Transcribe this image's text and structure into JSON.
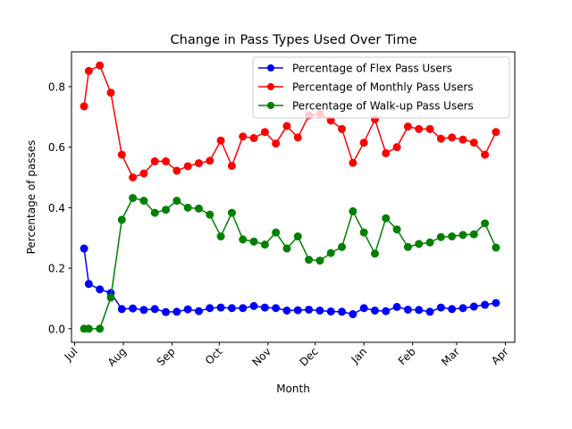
{
  "chart_data": {
    "type": "line",
    "title": "Change in Pass Types Used Over Time",
    "xlabel": "Month",
    "ylabel": "Percentage of passes",
    "ylim": [
      -0.045,
      0.915
    ],
    "yticks": [
      0.0,
      0.2,
      0.4,
      0.6,
      0.8
    ],
    "xlim": [
      "2016-06-29",
      "2017-04-07"
    ],
    "xticks": [
      {
        "label": "Jul",
        "date": "2016-07-01"
      },
      {
        "label": "Aug",
        "date": "2016-08-01"
      },
      {
        "label": "Sep",
        "date": "2016-09-01"
      },
      {
        "label": "Oct",
        "date": "2016-10-01"
      },
      {
        "label": "Nov",
        "date": "2016-11-01"
      },
      {
        "label": "Dec",
        "date": "2016-12-01"
      },
      {
        "label": "Jan",
        "date": "2017-01-01"
      },
      {
        "label": "Feb",
        "date": "2017-02-01"
      },
      {
        "label": "Mar",
        "date": "2017-03-01"
      },
      {
        "label": "Apr",
        "date": "2017-04-01"
      }
    ],
    "legend_position": "top-right",
    "grid": false,
    "x": [
      "2016-07-07",
      "2016-07-10",
      "2016-07-17",
      "2016-07-24",
      "2016-07-31",
      "2016-08-07",
      "2016-08-14",
      "2016-08-21",
      "2016-08-28",
      "2016-09-04",
      "2016-09-11",
      "2016-09-18",
      "2016-09-25",
      "2016-10-02",
      "2016-10-09",
      "2016-10-16",
      "2016-10-23",
      "2016-10-30",
      "2016-11-06",
      "2016-11-13",
      "2016-11-20",
      "2016-11-27",
      "2016-12-04",
      "2016-12-11",
      "2016-12-18",
      "2016-12-25",
      "2017-01-01",
      "2017-01-08",
      "2017-01-15",
      "2017-01-22",
      "2017-01-29",
      "2017-02-05",
      "2017-02-12",
      "2017-02-19",
      "2017-02-26",
      "2017-03-05",
      "2017-03-12",
      "2017-03-19",
      "2017-03-26"
    ],
    "series": [
      {
        "name": "Percentage of Flex Pass Users",
        "color": "#0000ff",
        "values": [
          0.265,
          0.148,
          0.13,
          0.118,
          0.065,
          0.067,
          0.062,
          0.065,
          0.055,
          0.056,
          0.064,
          0.058,
          0.068,
          0.07,
          0.068,
          0.068,
          0.075,
          0.07,
          0.068,
          0.06,
          0.061,
          0.063,
          0.06,
          0.057,
          0.056,
          0.048,
          0.068,
          0.06,
          0.058,
          0.072,
          0.063,
          0.062,
          0.056,
          0.07,
          0.065,
          0.068,
          0.073,
          0.079,
          0.085
        ]
      },
      {
        "name": "Percentage of Monthly Pass Users",
        "color": "#ff0000",
        "values": [
          0.735,
          0.852,
          0.87,
          0.78,
          0.575,
          0.5,
          0.513,
          0.553,
          0.553,
          0.522,
          0.537,
          0.547,
          0.555,
          0.622,
          0.538,
          0.635,
          0.63,
          0.65,
          0.612,
          0.67,
          0.632,
          0.705,
          0.71,
          0.688,
          0.66,
          0.548,
          0.615,
          0.692,
          0.58,
          0.6,
          0.668,
          0.66,
          0.66,
          0.628,
          0.632,
          0.625,
          0.615,
          0.575,
          0.65
        ]
      },
      {
        "name": "Percentage of Walk-up Pass Users",
        "color": "#008000",
        "values": [
          0.0,
          0.0,
          0.0,
          0.103,
          0.36,
          0.432,
          0.423,
          0.383,
          0.393,
          0.423,
          0.4,
          0.397,
          0.377,
          0.305,
          0.383,
          0.295,
          0.288,
          0.278,
          0.318,
          0.265,
          0.305,
          0.228,
          0.225,
          0.25,
          0.27,
          0.388,
          0.318,
          0.248,
          0.365,
          0.328,
          0.27,
          0.28,
          0.285,
          0.303,
          0.305,
          0.31,
          0.312,
          0.348,
          0.268
        ]
      }
    ]
  }
}
